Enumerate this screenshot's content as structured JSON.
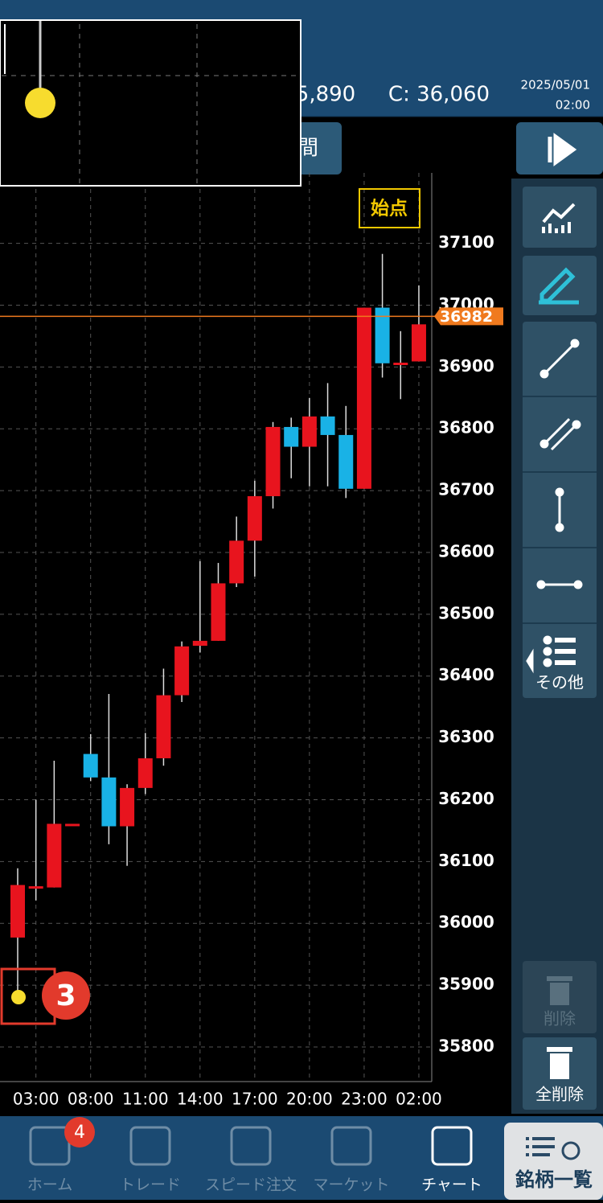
{
  "header": {
    "open_partial": "5,890",
    "close": "C: 36,060",
    "date": "2025/05/01",
    "time": "02:00",
    "period_button": "間"
  },
  "chart_data": {
    "type": "candlestick",
    "categories": [
      null,
      "03:00",
      null,
      null,
      "08:00",
      null,
      null,
      "11:00",
      null,
      null,
      "14:00",
      null,
      null,
      "17:00",
      null,
      null,
      "20:00",
      null,
      null,
      "23:00",
      null,
      null,
      "02:00"
    ],
    "open": [
      35977,
      36060,
      36058,
      36161,
      36274,
      36236,
      36157,
      36219,
      36267,
      36369,
      36449,
      36457,
      36550,
      36619,
      36691,
      36803,
      36771,
      36820,
      36790,
      36703,
      36996,
      36907,
      36909
    ],
    "high": [
      36089,
      36200,
      36263,
      36161,
      36306,
      36371,
      36225,
      36308,
      36412,
      36456,
      36586,
      36583,
      36658,
      36716,
      36811,
      36818,
      36850,
      36874,
      36837,
      36996,
      37083,
      36958,
      37032
    ],
    "low": [
      35881,
      36037,
      36058,
      36161,
      36230,
      36128,
      36093,
      36209,
      36255,
      36358,
      36438,
      36457,
      36544,
      36561,
      36671,
      36720,
      36707,
      36707,
      36688,
      36703,
      36883,
      36848,
      36909
    ],
    "close": [
      36062,
      36060,
      36161,
      36161,
      36236,
      36157,
      36219,
      36267,
      36369,
      36448,
      36457,
      36550,
      36619,
      36691,
      36803,
      36771,
      36820,
      36790,
      36703,
      36996,
      36906,
      36907,
      36969
    ],
    "up_color": "#e8141e",
    "down_color": "#19b2e6",
    "ylim": [
      35744,
      37214
    ],
    "yticks": [
      35800,
      35900,
      36000,
      36100,
      36200,
      36300,
      36400,
      36500,
      36600,
      36700,
      36800,
      36900,
      37000,
      37100
    ],
    "grid": true,
    "current_price": 36982,
    "start_label": "始点"
  },
  "toolbar": {
    "other": "その他",
    "delete": "削除",
    "delete_all": "全削除"
  },
  "annotation": "3",
  "nav": {
    "items": [
      "ホーム",
      "トレード",
      "スピード注文",
      "マーケット",
      "チャート"
    ],
    "badge": "4",
    "list_button": "銘柄一覧"
  }
}
